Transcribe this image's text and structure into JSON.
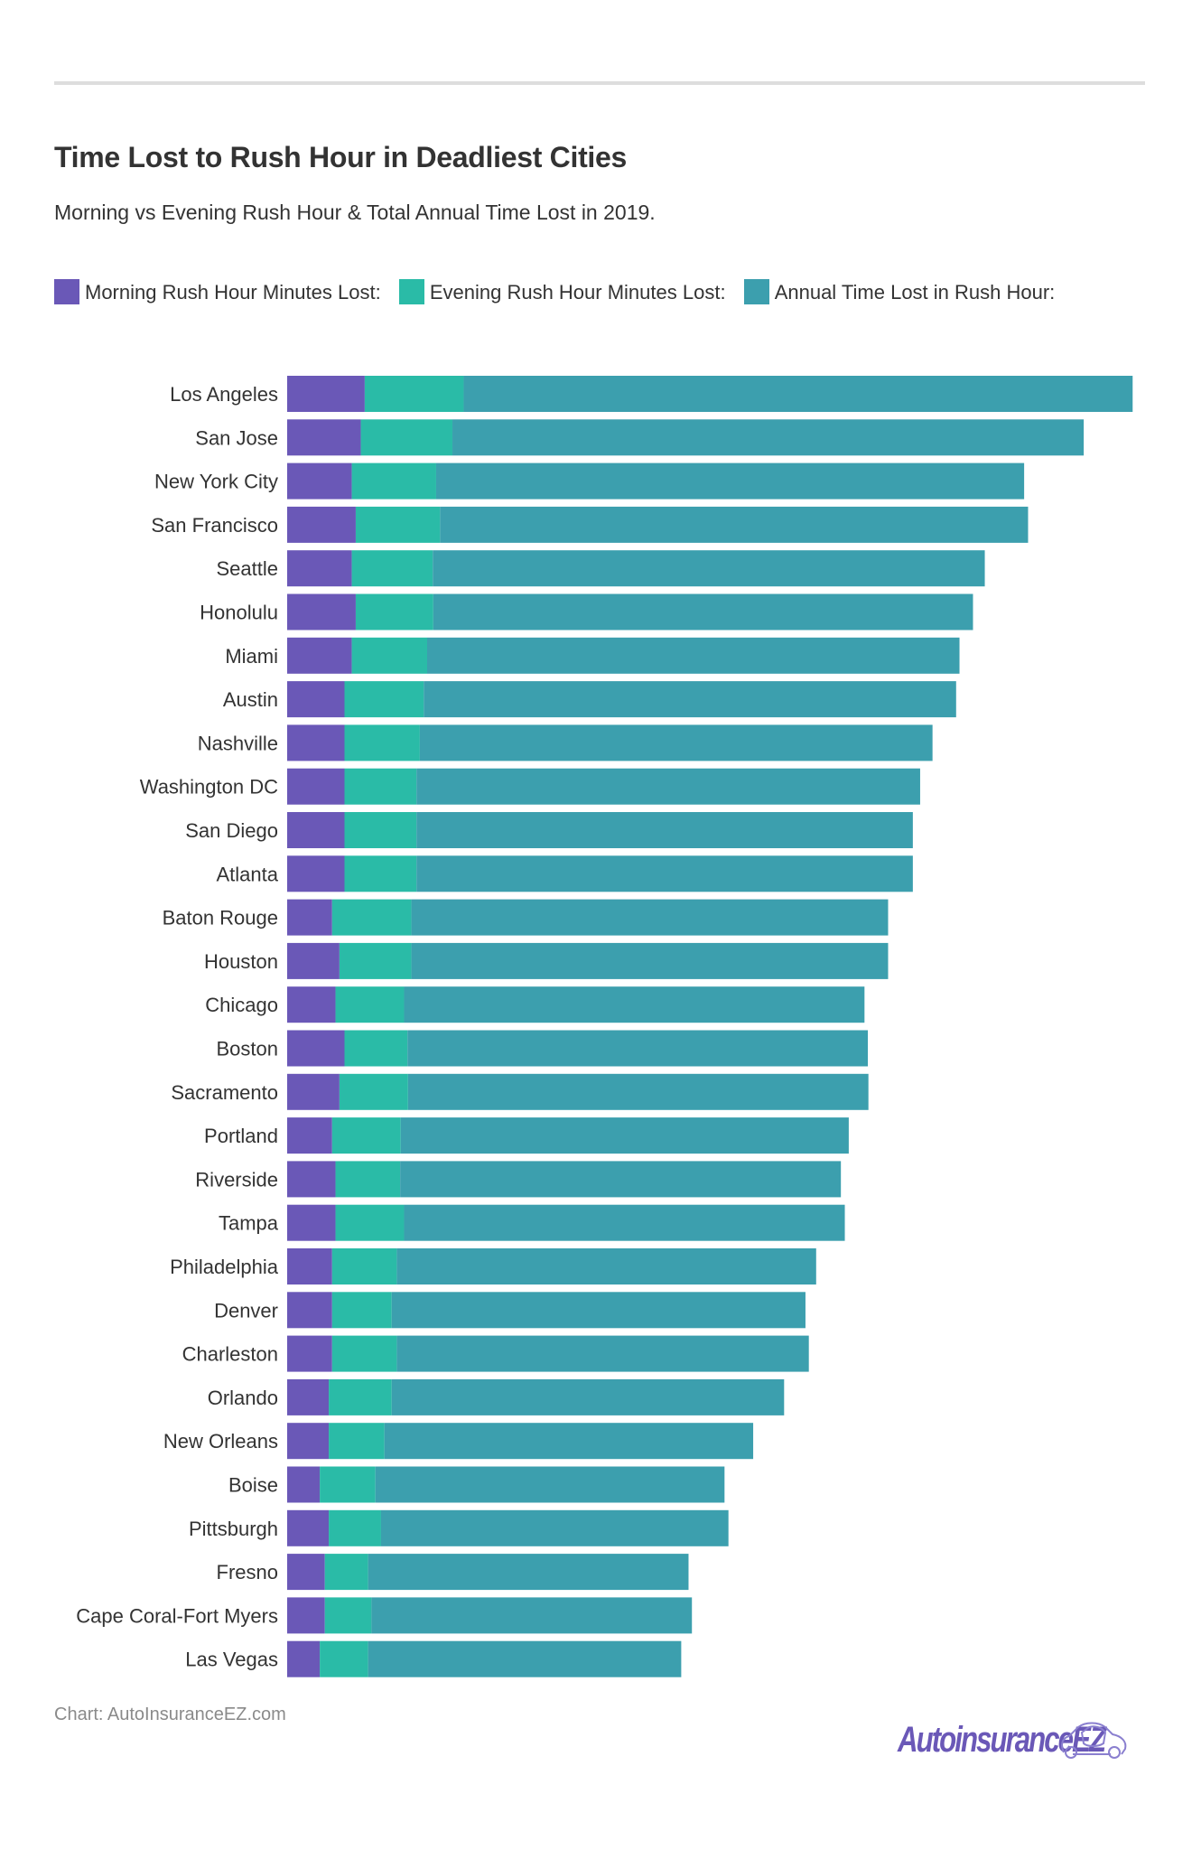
{
  "header": {
    "title": "Time Lost to Rush Hour in Deadliest Cities",
    "subtitle": "Morning vs Evening Rush Hour & Total Annual Time Lost in 2019."
  },
  "legend": [
    {
      "label": "Morning Rush Hour Minutes Lost:",
      "color": "#6a58b7"
    },
    {
      "label": "Evening Rush Hour Minutes Lost:",
      "color": "#2abba7"
    },
    {
      "label": "Annual Time Lost in Rush Hour:",
      "color": "#3c9fae"
    }
  ],
  "footer": {
    "source": "Chart: AutoInsuranceEZ.com",
    "logo_text": "AutoinsuranceEZ",
    "logo_icon": "car-outline-icon"
  },
  "chart_data": {
    "type": "bar",
    "orientation": "horizontal",
    "stacked": true,
    "title": "Time Lost to Rush Hour in Deadliest Cities",
    "subtitle": "Morning vs Evening Rush Hour & Total Annual Time Lost in 2019.",
    "xlabel": "",
    "ylabel": "",
    "grid": false,
    "legend_position": "top-left",
    "categories": [
      "Los Angeles",
      "San Jose",
      "New York City",
      "San Francisco",
      "Seattle",
      "Honolulu",
      "Miami",
      "Austin",
      "Nashville",
      "Washington DC",
      "San Diego",
      "Atlanta",
      "Baton Rouge",
      "Houston",
      "Chicago",
      "Boston",
      "Sacramento",
      "Portland",
      "Riverside",
      "Tampa",
      "Philadelphia",
      "Denver",
      "Charleston",
      "Orlando",
      "New Orleans",
      "Boise",
      "Pittsburgh",
      "Fresno",
      "Cape Coral-Fort Myers",
      "Las Vegas"
    ],
    "series": [
      {
        "name": "Morning Rush Hour Minutes Lost:",
        "color": "#6a58b7",
        "values": [
          13.8,
          13.1,
          11.5,
          12.2,
          11.5,
          12.2,
          11.5,
          10.2,
          10.2,
          10.2,
          10.2,
          10.2,
          8.0,
          9.3,
          8.6,
          10.2,
          9.3,
          8.0,
          8.6,
          8.6,
          8.0,
          8.0,
          8.0,
          7.4,
          7.4,
          5.8,
          7.4,
          6.7,
          6.7,
          5.8
        ]
      },
      {
        "name": "Evening Rush Hour Minutes Lost:",
        "color": "#2abba7",
        "values": [
          17.6,
          16.3,
          15.0,
          15.0,
          14.4,
          13.8,
          13.4,
          14.1,
          13.4,
          12.8,
          12.8,
          12.8,
          14.1,
          12.8,
          12.2,
          11.2,
          12.2,
          12.2,
          11.5,
          12.2,
          11.5,
          10.6,
          11.5,
          11.2,
          9.9,
          9.9,
          9.3,
          7.7,
          8.3,
          8.6
        ]
      },
      {
        "name": "Annual Time Lost in Rush Hour:",
        "color": "#3c9fae",
        "values": [
          119.0,
          112.3,
          104.6,
          104.6,
          98.2,
          96.0,
          94.7,
          94.7,
          91.2,
          89.6,
          88.3,
          88.3,
          84.8,
          84.8,
          81.9,
          81.9,
          81.9,
          79.7,
          78.4,
          78.4,
          74.6,
          73.6,
          73.3,
          69.8,
          65.6,
          62.1,
          61.8,
          57.0,
          57.0,
          55.7
        ]
      }
    ],
    "xlim": [
      0,
      151
    ]
  }
}
